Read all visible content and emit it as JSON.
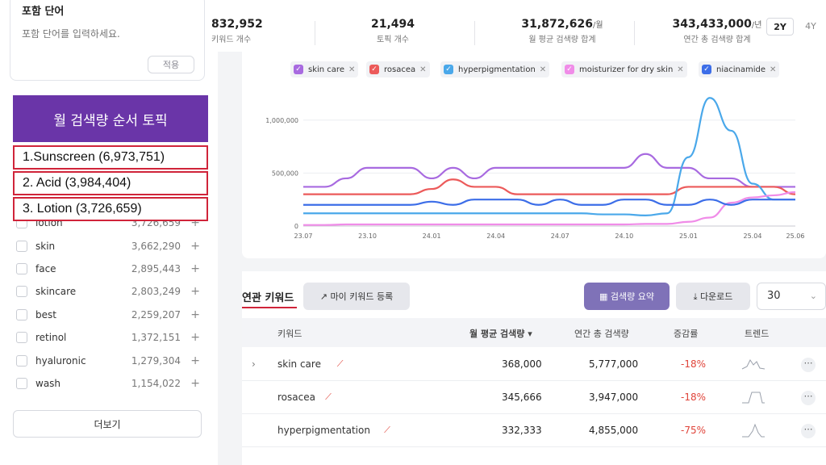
{
  "include_filter": {
    "title": "포함 단어",
    "placeholder": "포함 단어를 입력하세요.",
    "apply_label": "적용"
  },
  "topic_overlay": {
    "title": "월 검색량 순서 토픽",
    "items": [
      "1.Sunscreen (6,973,751)",
      "2. Acid (3,984,404)",
      "3. Lotion (3,726,659)"
    ]
  },
  "keyword_list": [
    {
      "name": "lotion",
      "value": "3,726,659"
    },
    {
      "name": "skin",
      "value": "3,662,290"
    },
    {
      "name": "face",
      "value": "2,895,443"
    },
    {
      "name": "skincare",
      "value": "2,803,249"
    },
    {
      "name": "best",
      "value": "2,259,207"
    },
    {
      "name": "retinol",
      "value": "1,372,151"
    },
    {
      "name": "hyaluronic",
      "value": "1,279,304"
    },
    {
      "name": "wash",
      "value": "1,154,022"
    }
  ],
  "more_label": "더보기",
  "stats": [
    {
      "value": "832,952",
      "unit": "",
      "label": "키워드 개수"
    },
    {
      "value": "21,494",
      "unit": "",
      "label": "토픽 개수"
    },
    {
      "value": "31,872,626",
      "unit": "/월",
      "label": "월 평균 검색량 합계"
    },
    {
      "value": "343,433,000",
      "unit": "/년",
      "label": "연간 총 검색량 합계"
    }
  ],
  "period_options": [
    "2Y",
    "4Y"
  ],
  "chips": [
    {
      "label": "skin care",
      "color": "#a86ae0"
    },
    {
      "label": "rosacea",
      "color": "#ec5a5a"
    },
    {
      "label": "hyperpigmentation",
      "color": "#4aa8ea"
    },
    {
      "label": "moisturizer for dry skin",
      "color": "#f08ce8"
    },
    {
      "label": "niacinamide",
      "color": "#3d6ee8"
    }
  ],
  "chart_data": {
    "type": "line",
    "x": [
      "23.07",
      "23.08",
      "23.09",
      "23.10",
      "23.11",
      "23.12",
      "24.01",
      "24.02",
      "24.03",
      "24.04",
      "24.05",
      "24.06",
      "24.07",
      "24.08",
      "24.09",
      "24.10",
      "24.11",
      "24.12",
      "25.01",
      "25.02",
      "25.03",
      "25.04",
      "25.05",
      "25.06"
    ],
    "x_tick_labels": [
      "23.07",
      "23.10",
      "24.01",
      "24.04",
      "24.07",
      "24.10",
      "25.01",
      "25.04",
      "25.06"
    ],
    "y_tick_labels": [
      "0",
      "500,000",
      "1,000,000"
    ],
    "ylim": [
      0,
      1250000
    ],
    "series": [
      {
        "name": "skin care",
        "color": "#a86ae0",
        "values": [
          370000,
          370000,
          450000,
          550000,
          550000,
          550000,
          450000,
          550000,
          450000,
          550000,
          550000,
          550000,
          550000,
          550000,
          550000,
          550000,
          680000,
          550000,
          550000,
          450000,
          450000,
          370000,
          370000,
          370000
        ]
      },
      {
        "name": "rosacea",
        "color": "#ec5a5a",
        "values": [
          300000,
          300000,
          300000,
          300000,
          300000,
          300000,
          350000,
          440000,
          370000,
          370000,
          300000,
          300000,
          300000,
          300000,
          300000,
          300000,
          300000,
          300000,
          370000,
          370000,
          370000,
          370000,
          370000,
          300000
        ]
      },
      {
        "name": "hyperpigmentation",
        "color": "#4aa8ea",
        "values": [
          120000,
          120000,
          120000,
          120000,
          120000,
          120000,
          120000,
          120000,
          120000,
          120000,
          120000,
          120000,
          120000,
          120000,
          110000,
          110000,
          100000,
          120000,
          650000,
          1210000,
          900000,
          400000,
          250000,
          250000
        ]
      },
      {
        "name": "moisturizer for dry skin",
        "color": "#f08ce8",
        "values": [
          10000,
          10000,
          15000,
          15000,
          15000,
          15000,
          15000,
          15000,
          15000,
          15000,
          15000,
          15000,
          15000,
          15000,
          15000,
          15000,
          20000,
          20000,
          40000,
          80000,
          220000,
          270000,
          290000,
          320000
        ]
      },
      {
        "name": "niacinamide",
        "color": "#3d6ee8",
        "values": [
          200000,
          200000,
          200000,
          200000,
          200000,
          200000,
          230000,
          200000,
          250000,
          250000,
          250000,
          200000,
          250000,
          200000,
          200000,
          250000,
          250000,
          200000,
          200000,
          250000,
          200000,
          250000,
          250000,
          250000
        ]
      }
    ]
  },
  "table": {
    "tab_label": "연관 키워드",
    "my_keyword_label": "마이 키워드 등록",
    "volume_summary_label": "검색량 요약",
    "download_label": "다운로드",
    "page_size": "30",
    "headers": [
      "키워드",
      "월 평균 검색량 ▾",
      "연간 총 검색량",
      "증감률",
      "트렌드"
    ],
    "rows": [
      {
        "keyword": "skin care",
        "monthly": "368,000",
        "yearly": "5,777,000",
        "change": "-18%",
        "expandable": true
      },
      {
        "keyword": "rosacea",
        "monthly": "345,666",
        "yearly": "3,947,000",
        "change": "-18%",
        "expandable": false
      },
      {
        "keyword": "hyperpigmentation",
        "monthly": "332,333",
        "yearly": "4,855,000",
        "change": "-75%",
        "expandable": false
      }
    ]
  }
}
